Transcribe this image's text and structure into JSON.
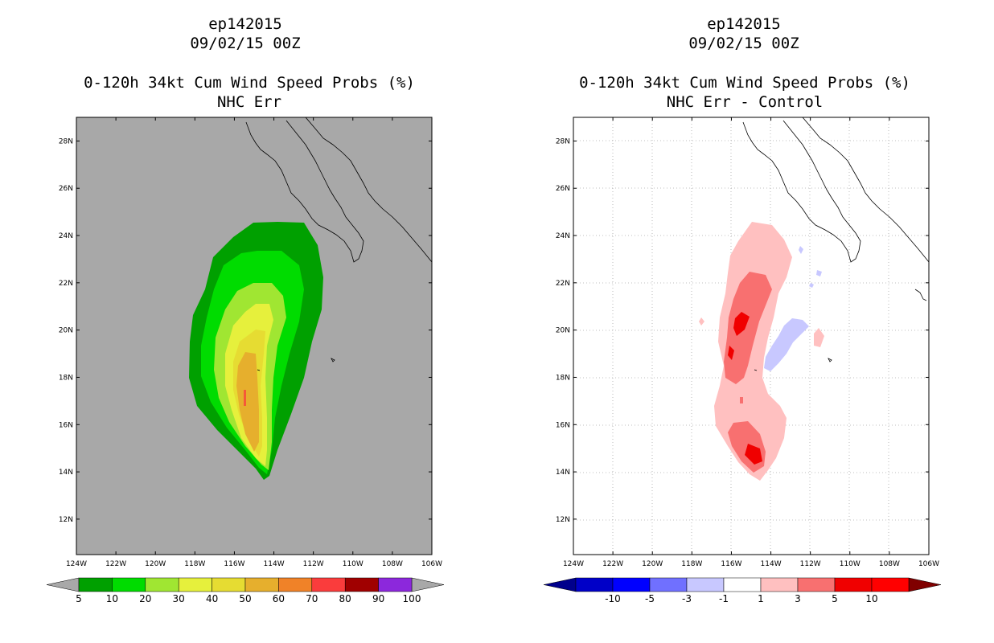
{
  "left_panel": {
    "storm_id": "ep142015",
    "datetime": "09/02/15 00Z",
    "product": "0-120h 34kt Cum Wind Speed Probs (%)",
    "subtitle": "NHC Err",
    "background": "#a8a8a8"
  },
  "right_panel": {
    "storm_id": "ep142015",
    "datetime": "09/02/15 00Z",
    "product": "0-120h 34kt Cum Wind Speed Probs (%)",
    "subtitle": "NHC Err - Control",
    "background": "#ffffff"
  },
  "chart_data": [
    {
      "type": "heatmap",
      "title": "0-120h 34kt Cum Wind Speed Probs (%) NHC Err",
      "x_range_lon": [
        -124,
        -106
      ],
      "y_range_lat": [
        10.5,
        29
      ],
      "x_ticks": [
        "124W",
        "122W",
        "120W",
        "118W",
        "116W",
        "114W",
        "112W",
        "110W",
        "108W",
        "106W"
      ],
      "y_ticks": [
        "12N",
        "14N",
        "16N",
        "18N",
        "20N",
        "22N",
        "24N",
        "26N",
        "28N"
      ],
      "grid": false,
      "colorbar": {
        "labels": [
          "5",
          "10",
          "20",
          "30",
          "40",
          "50",
          "60",
          "70",
          "80",
          "90",
          "100"
        ],
        "colors": [
          "#00a000",
          "#00dc00",
          "#a0e632",
          "#e6f03c",
          "#e6dc32",
          "#e6af2d",
          "#f08228",
          "#fa3c3c",
          "#a00000",
          "#8c28dc"
        ],
        "under_color": "#a8a8a8",
        "over_color": "#a8a8a8"
      }
    },
    {
      "type": "heatmap",
      "title": "0-120h 34kt Cum Wind Speed Probs (%) NHC Err - Control",
      "x_range_lon": [
        -124,
        -106
      ],
      "y_range_lat": [
        10.5,
        29
      ],
      "x_ticks": [
        "124W",
        "122W",
        "120W",
        "118W",
        "116W",
        "114W",
        "112W",
        "110W",
        "108W",
        "106W"
      ],
      "y_ticks": [
        "12N",
        "14N",
        "16N",
        "18N",
        "20N",
        "22N",
        "24N",
        "26N",
        "28N"
      ],
      "grid": true,
      "colorbar": {
        "labels": [
          "-10",
          "-5",
          "-3",
          "-1",
          "1",
          "3",
          "5",
          "10"
        ],
        "colors": [
          "#0000c8",
          "#0000ff",
          "#7070ff",
          "#c8c8ff",
          "#ffffff",
          "#ffc0c0",
          "#f87070",
          "#f00000",
          "#ff0000"
        ],
        "under_color": "#00008c",
        "over_color": "#800000"
      }
    }
  ]
}
